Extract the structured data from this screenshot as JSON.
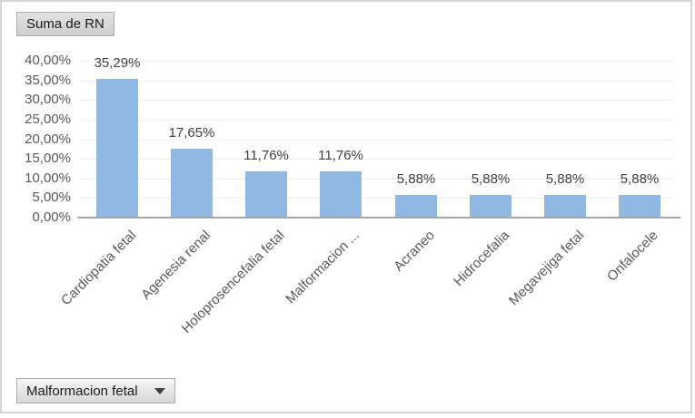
{
  "pivot": {
    "value_field_button": "Suma de RN",
    "filter_field_button": "Malformacion fetal"
  },
  "chart_data": {
    "type": "bar",
    "title": "",
    "xlabel": "",
    "ylabel": "",
    "categories": [
      "Cardiopatia fetal",
      "Agenesia renal",
      "Holoprosencefalia fetal",
      "Malformacion ...",
      "Acraneo",
      "Hidrocefalia",
      "Megavejiga fetal",
      "Onfalocele"
    ],
    "values": [
      35.29,
      17.65,
      11.76,
      11.76,
      5.88,
      5.88,
      5.88,
      5.88
    ],
    "data_labels": [
      "35,29%",
      "17,65%",
      "11,76%",
      "11,76%",
      "5,88%",
      "5,88%",
      "5,88%",
      "5,88%"
    ],
    "y_ticks": [
      {
        "v": 40,
        "label": "40,00%"
      },
      {
        "v": 35,
        "label": "35,00%"
      },
      {
        "v": 30,
        "label": "30,00%"
      },
      {
        "v": 25,
        "label": "25,00%"
      },
      {
        "v": 20,
        "label": "20,00%"
      },
      {
        "v": 15,
        "label": "15,00%"
      },
      {
        "v": 10,
        "label": "10,00%"
      },
      {
        "v": 5,
        "label": "5,00%"
      },
      {
        "v": 0,
        "label": "0,00%"
      }
    ],
    "ylim": [
      0,
      40
    ],
    "grid": true,
    "legend": "none",
    "bar_color": "#8fb8e2",
    "gridline_color": "#ececec",
    "axis_line_color": "#a6a6a6",
    "label_color": "#595959"
  }
}
